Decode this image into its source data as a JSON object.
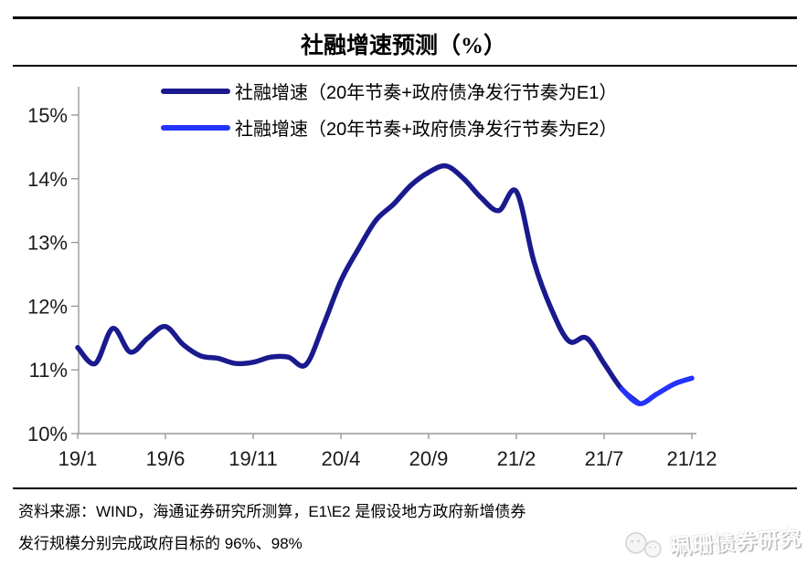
{
  "title": "社融增速预测（%）",
  "legend": [
    {
      "label": "社融增速（20年节奏+政府债净发行节奏为E1）",
      "color": "#1a1a8e"
    },
    {
      "label": "社融增速（20年节奏+政府债净发行节奏为E2）",
      "color": "#2433ff"
    }
  ],
  "chart_data": {
    "type": "line",
    "x": [
      "19/1",
      "19/2",
      "19/3",
      "19/4",
      "19/5",
      "19/6",
      "19/7",
      "19/8",
      "19/9",
      "19/10",
      "19/11",
      "19/12",
      "20/1",
      "20/2",
      "20/3",
      "20/4",
      "20/5",
      "20/6",
      "20/7",
      "20/8",
      "20/9",
      "20/10",
      "20/11",
      "20/12",
      "21/1",
      "21/2",
      "21/3",
      "21/4",
      "21/5",
      "21/6",
      "21/7",
      "21/8",
      "21/9",
      "21/10",
      "21/11",
      "21/12"
    ],
    "series": [
      {
        "name": "社融增速（20年节奏+政府债净发行节奏为E1）",
        "color": "#1a1a8e",
        "start_index": 0,
        "values": [
          11.35,
          11.1,
          11.65,
          11.28,
          11.5,
          11.68,
          11.4,
          11.22,
          11.18,
          11.1,
          11.12,
          11.2,
          11.2,
          11.08,
          11.7,
          12.4,
          12.9,
          13.35,
          13.6,
          13.9,
          14.1,
          14.2,
          14.0,
          13.7,
          13.5,
          13.8,
          12.7,
          11.95,
          11.45,
          11.5,
          11.1,
          10.7,
          10.47
        ]
      },
      {
        "name": "社融增速（20年节奏+政府债净发行节奏为E2）",
        "color": "#2433ff",
        "start_index": 31,
        "values": [
          10.7,
          10.47,
          10.62,
          10.78,
          10.87
        ]
      }
    ],
    "xticks": [
      "19/1",
      "19/6",
      "19/11",
      "20/4",
      "20/9",
      "21/2",
      "21/7",
      "21/12"
    ],
    "yticks": [
      "10%",
      "11%",
      "12%",
      "13%",
      "14%",
      "15%"
    ],
    "ylim": [
      10,
      15
    ],
    "grid": false,
    "legend_position": "top-center",
    "axis_color": "#999999"
  },
  "footer": {
    "line1": "资料来源：WIND，海通证券研究所测算，E1\\E2 是假设地方政府新增债券",
    "line2": "发行规模分别完成政府目标的 96%、98%"
  },
  "watermark": {
    "text": "珮珊债券研究",
    "icon": "wechat-icon"
  }
}
